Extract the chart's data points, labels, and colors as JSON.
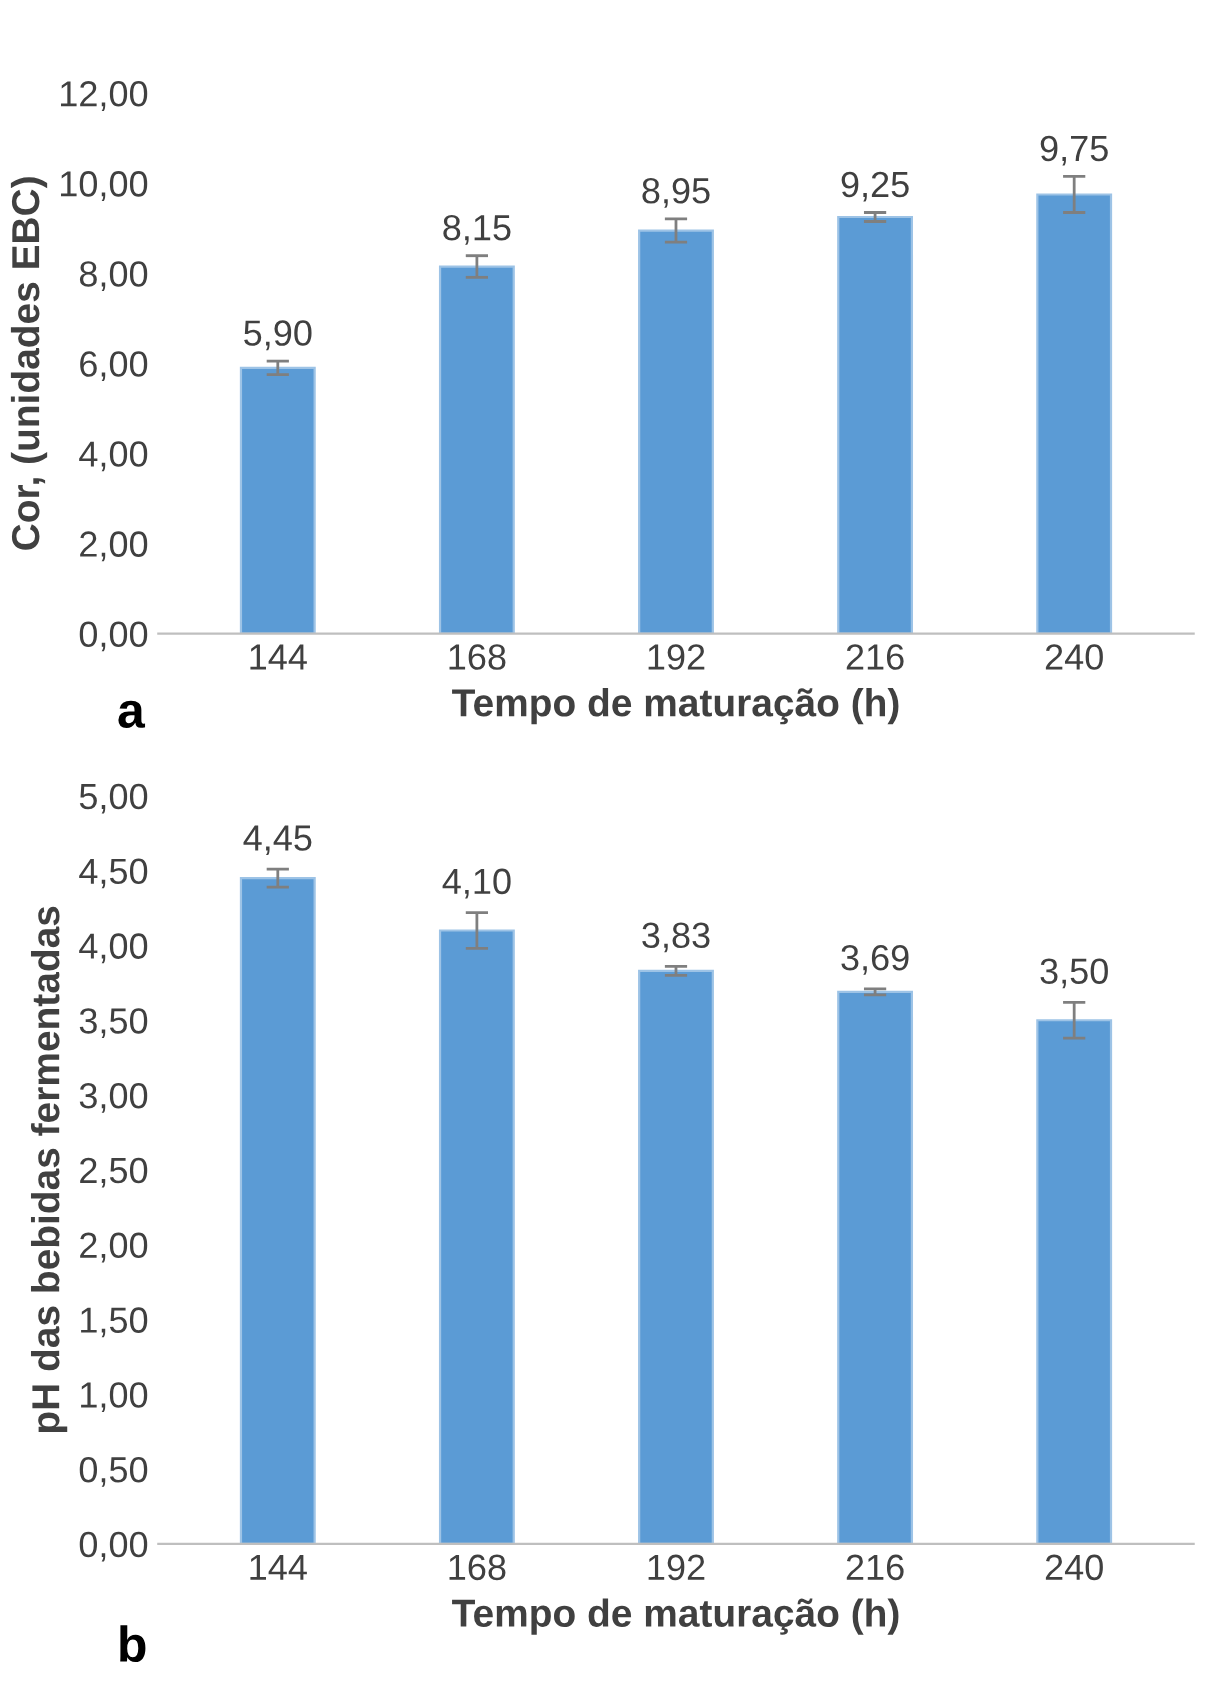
{
  "chart_data": [
    {
      "type": "bar",
      "xlabel": "Tempo de maturação (h)",
      "ylabel": "Cor, (unidades EBC)",
      "categories": [
        "144",
        "168",
        "192",
        "216",
        "240"
      ],
      "values": [
        5.9,
        8.15,
        8.95,
        9.25,
        9.75
      ],
      "errors": [
        0.15,
        0.24,
        0.26,
        0.1,
        0.4
      ],
      "value_labels": [
        "5,90",
        "8,15",
        "8,95",
        "9,25",
        "9,75"
      ],
      "color": "#5b9bd5",
      "ylim": [
        0,
        12
      ],
      "yticks": [
        {
          "value": 0,
          "label": "0,00"
        },
        {
          "value": 2,
          "label": "2,00"
        },
        {
          "value": 4,
          "label": "4,00"
        },
        {
          "value": 6,
          "label": "6,00"
        },
        {
          "value": 8,
          "label": "8,00"
        },
        {
          "value": 10,
          "label": "10,00"
        },
        {
          "value": 12,
          "label": "12,00"
        }
      ],
      "grid": false,
      "annotations": [
        "a"
      ]
    },
    {
      "type": "bar",
      "xlabel": "Tempo de maturação (h)",
      "ylabel": "pH das bebidas fermentadas",
      "categories": [
        "144",
        "168",
        "192",
        "216",
        "240"
      ],
      "values": [
        4.45,
        4.1,
        3.83,
        3.69,
        3.5
      ],
      "errors": [
        0.06,
        0.12,
        0.03,
        0.02,
        0.12
      ],
      "value_labels": [
        "4,45",
        "4,10",
        "3,83",
        "3,69",
        "3,50"
      ],
      "color": "#5b9bd5",
      "ylim": [
        0,
        5
      ],
      "yticks": [
        {
          "value": 0,
          "label": "0,00"
        },
        {
          "value": 0.5,
          "label": "0,50"
        },
        {
          "value": 1,
          "label": "1,00"
        },
        {
          "value": 1.5,
          "label": "1,50"
        },
        {
          "value": 2,
          "label": "2,00"
        },
        {
          "value": 2.5,
          "label": "2,50"
        },
        {
          "value": 3,
          "label": "3,00"
        },
        {
          "value": 3.5,
          "label": "3,50"
        },
        {
          "value": 4,
          "label": "4,00"
        },
        {
          "value": 4.5,
          "label": "4,50"
        },
        {
          "value": 5,
          "label": "5,00"
        }
      ],
      "grid": false,
      "annotations": [
        "b"
      ]
    }
  ]
}
